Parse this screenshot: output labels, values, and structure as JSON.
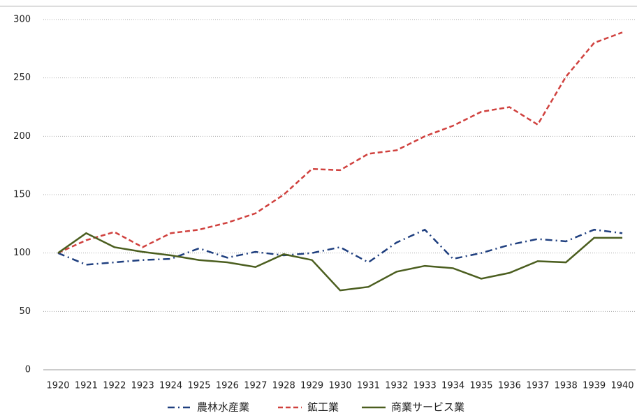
{
  "chart_data": {
    "type": "line",
    "categories": [
      "1920",
      "1921",
      "1922",
      "1923",
      "1924",
      "1925",
      "1926",
      "1927",
      "1928",
      "1929",
      "1930",
      "1931",
      "1932",
      "1933",
      "1934",
      "1935",
      "1936",
      "1937",
      "1938",
      "1939",
      "1940"
    ],
    "series": [
      {
        "name": "農林水産業",
        "color": "#1f3f7f",
        "dash": "dashdot",
        "values": [
          100,
          90,
          92,
          94,
          95,
          104,
          96,
          101,
          98,
          100,
          105,
          92,
          109,
          120,
          95,
          100,
          107,
          112,
          110,
          120,
          117
        ]
      },
      {
        "name": "鉱工業",
        "color": "#d0413e",
        "dash": "dashed",
        "values": [
          100,
          111,
          118,
          105,
          117,
          120,
          126,
          134,
          150,
          172,
          171,
          185,
          188,
          200,
          209,
          221,
          225,
          210,
          251,
          280,
          289
        ]
      },
      {
        "name": "商業サービス業",
        "color": "#4b5e1f",
        "dash": "solid",
        "values": [
          100,
          117,
          105,
          101,
          98,
          94,
          92,
          88,
          99,
          94,
          68,
          71,
          84,
          89,
          87,
          78,
          83,
          93,
          92,
          113,
          113
        ]
      }
    ],
    "ylim": [
      0,
      300
    ],
    "yticks": [
      0,
      50,
      100,
      150,
      200,
      250,
      300
    ],
    "grid": true,
    "legend": "bottom"
  }
}
